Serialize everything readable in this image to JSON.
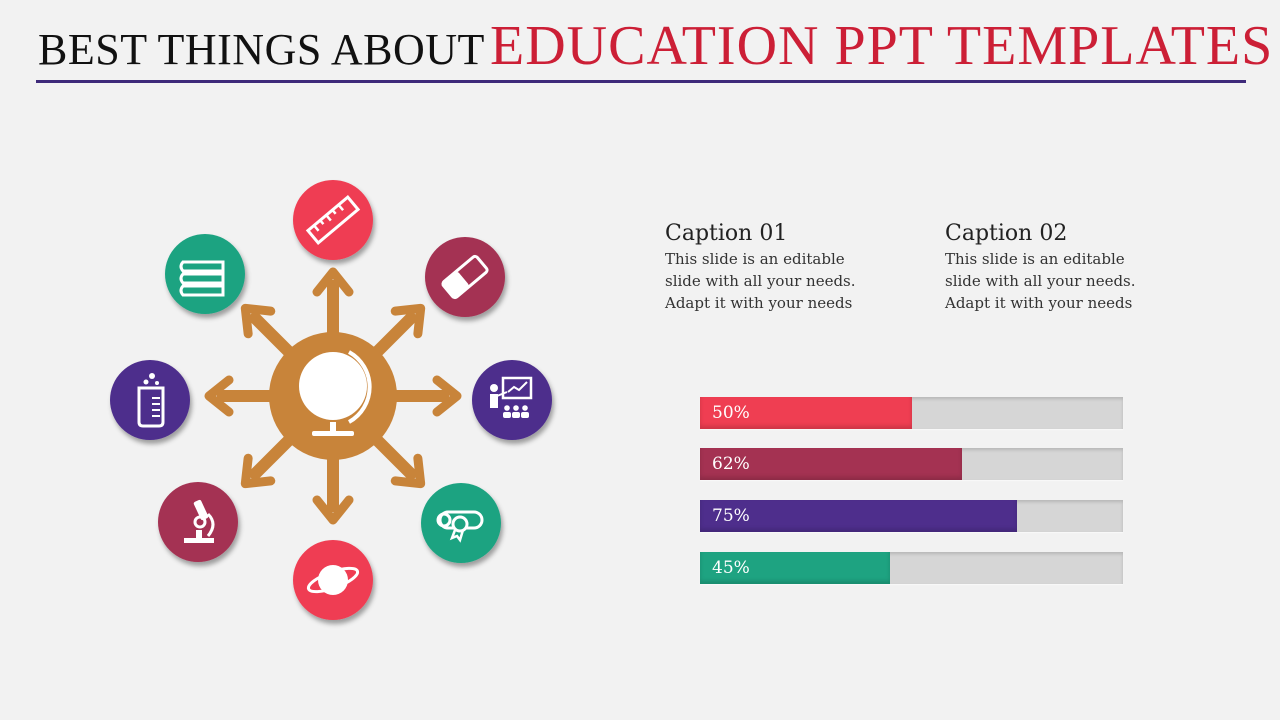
{
  "title": {
    "part1": "BEST THINGS ABOUT",
    "part2": "EDUCATION PPT TEMPLATES"
  },
  "colors": {
    "title_accent": "#cc1f36",
    "rule": "#3e2a7a",
    "hub": "#c8843a",
    "red": "#ef3e52",
    "maroon": "#a43252",
    "purple": "#4e2e8c",
    "green": "#1ea381",
    "track": "#d6d6d6"
  },
  "diagram": {
    "center_icon": "globe-icon",
    "nodes": [
      {
        "icon": "ruler-icon",
        "color": "#ef3e52"
      },
      {
        "icon": "eraser-icon",
        "color": "#a43252"
      },
      {
        "icon": "teacher-icon",
        "color": "#4e2e8c"
      },
      {
        "icon": "diploma-icon",
        "color": "#1ea381"
      },
      {
        "icon": "planet-icon",
        "color": "#ef3e52"
      },
      {
        "icon": "microscope-icon",
        "color": "#a43252"
      },
      {
        "icon": "beaker-icon",
        "color": "#4e2e8c"
      },
      {
        "icon": "books-icon",
        "color": "#1ea381"
      }
    ]
  },
  "captions": [
    {
      "heading": "Caption 01",
      "line1": "This slide is an editable",
      "line2": "slide with all your needs.",
      "line3": "Adapt it with your needs"
    },
    {
      "heading": "Caption 02",
      "line1": "This slide is an editable",
      "line2": "slide with all your needs.",
      "line3": "Adapt it with your needs"
    }
  ],
  "chart_data": {
    "type": "bar",
    "orientation": "horizontal",
    "categories": [
      "",
      "",
      "",
      ""
    ],
    "values": [
      50,
      62,
      75,
      45
    ],
    "labels": [
      "50%",
      "62%",
      "75%",
      "45%"
    ],
    "colors": [
      "#ef3e52",
      "#a43252",
      "#4e2e8c",
      "#1ea381"
    ],
    "xlim": [
      0,
      100
    ],
    "title": "",
    "xlabel": "",
    "ylabel": ""
  }
}
